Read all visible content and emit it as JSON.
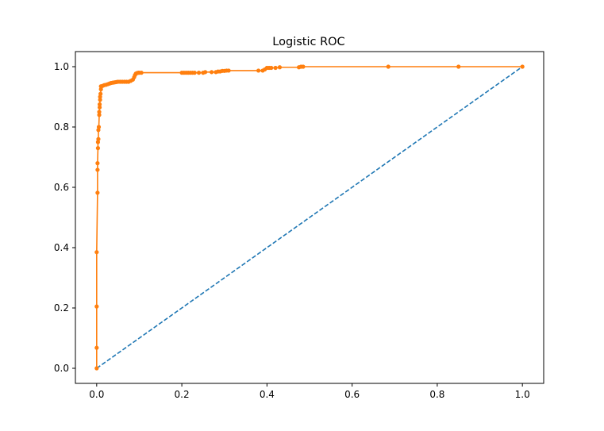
{
  "chart_data": {
    "type": "line",
    "title": "Logistic ROC",
    "xlabel": "",
    "ylabel": "",
    "xlim": [
      -0.05,
      1.05
    ],
    "ylim": [
      -0.05,
      1.05
    ],
    "xticks": [
      "0.0",
      "0.2",
      "0.4",
      "0.6",
      "0.8",
      "1.0"
    ],
    "yticks": [
      "0.0",
      "0.2",
      "0.4",
      "0.6",
      "0.8",
      "1.0"
    ],
    "xtick_values": [
      0.0,
      0.2,
      0.4,
      0.6,
      0.8,
      1.0
    ],
    "ytick_values": [
      0.0,
      0.2,
      0.4,
      0.6,
      0.8,
      1.0
    ],
    "grid": false,
    "colors": {
      "reference": "#1f77b4",
      "roc": "#ff7f0e",
      "axes": "#000000"
    },
    "series": [
      {
        "style": "dashed",
        "color": "#1f77b4",
        "x": [
          0.0,
          1.0
        ],
        "y": [
          0.0,
          1.0
        ]
      },
      {
        "style": "line-with-markers",
        "color": "#ff7f0e",
        "x": [
          0.0,
          0.0,
          0.0,
          0.0,
          0.002,
          0.002,
          0.002,
          0.003,
          0.003,
          0.004,
          0.004,
          0.005,
          0.006,
          0.006,
          0.007,
          0.007,
          0.008,
          0.008,
          0.009,
          0.01,
          0.01,
          0.012,
          0.015,
          0.018,
          0.022,
          0.026,
          0.03,
          0.034,
          0.038,
          0.042,
          0.046,
          0.05,
          0.055,
          0.06,
          0.065,
          0.07,
          0.075,
          0.08,
          0.085,
          0.088,
          0.09,
          0.092,
          0.095,
          0.098,
          0.1,
          0.105,
          0.2,
          0.205,
          0.21,
          0.215,
          0.22,
          0.225,
          0.23,
          0.24,
          0.25,
          0.255,
          0.27,
          0.28,
          0.285,
          0.29,
          0.295,
          0.3,
          0.305,
          0.31,
          0.38,
          0.39,
          0.395,
          0.4,
          0.405,
          0.41,
          0.42,
          0.43,
          0.475,
          0.48,
          0.485,
          0.685,
          0.85,
          1.0
        ],
        "y": [
          0.0,
          0.068,
          0.205,
          0.385,
          0.582,
          0.658,
          0.68,
          0.73,
          0.75,
          0.76,
          0.79,
          0.8,
          0.84,
          0.85,
          0.865,
          0.875,
          0.89,
          0.9,
          0.91,
          0.925,
          0.935,
          0.935,
          0.937,
          0.939,
          0.94,
          0.942,
          0.944,
          0.946,
          0.947,
          0.948,
          0.949,
          0.95,
          0.95,
          0.95,
          0.95,
          0.95,
          0.95,
          0.953,
          0.957,
          0.965,
          0.972,
          0.977,
          0.979,
          0.98,
          0.98,
          0.98,
          0.98,
          0.98,
          0.98,
          0.98,
          0.98,
          0.98,
          0.98,
          0.98,
          0.98,
          0.982,
          0.982,
          0.982,
          0.984,
          0.984,
          0.986,
          0.986,
          0.987,
          0.987,
          0.987,
          0.987,
          0.991,
          0.996,
          0.996,
          0.996,
          0.996,
          0.998,
          0.998,
          1.0,
          1.0,
          1.0,
          1.0,
          1.0
        ]
      }
    ]
  }
}
